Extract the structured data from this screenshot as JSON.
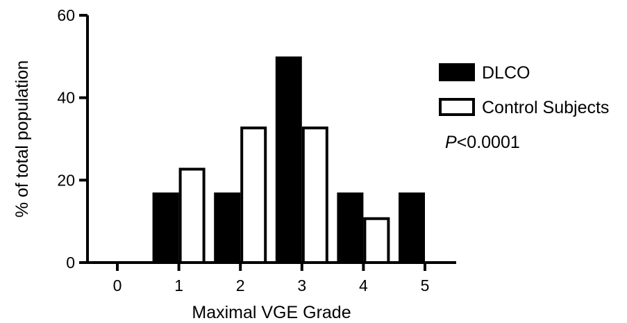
{
  "chart_data": {
    "type": "bar",
    "xlabel": "Maximal VGE Grade",
    "ylabel": "% of total population",
    "categories": [
      "0",
      "1",
      "2",
      "3",
      "4",
      "5"
    ],
    "ylim": [
      0,
      60
    ],
    "yticks": [
      "0",
      "20",
      "40",
      "60"
    ],
    "series": [
      {
        "name": "DLCO",
        "values": [
          0,
          17,
          17,
          50,
          17,
          17
        ],
        "fill": "#000000"
      },
      {
        "name": "Control Subjects",
        "values": [
          0,
          23,
          33,
          33,
          11,
          0
        ],
        "fill": "#ffffff"
      }
    ],
    "legend_position": "right",
    "annotation": {
      "italic_part": "P",
      "rest": "<0.0001"
    },
    "grid": false
  }
}
